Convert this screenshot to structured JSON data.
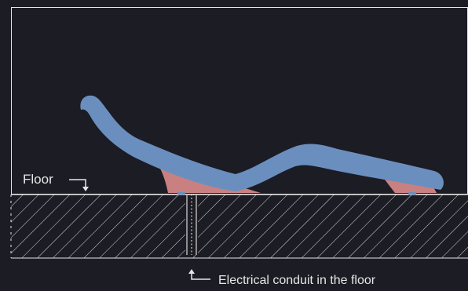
{
  "labels": {
    "floor": "Floor",
    "conduit": "Electrical conduit in the floor"
  },
  "colors": {
    "background": "#1c1c24",
    "frame": "#e6e6e6",
    "lounger_top": "#6a8fbf",
    "lounger_base": "#c98080",
    "conduit_line": "#d9d9d9",
    "conduit_dashed": "#e8c9a8"
  },
  "icons": {
    "floor_pointer": "bent-arrow-down-icon",
    "conduit_pointer": "bent-arrow-up-icon"
  }
}
